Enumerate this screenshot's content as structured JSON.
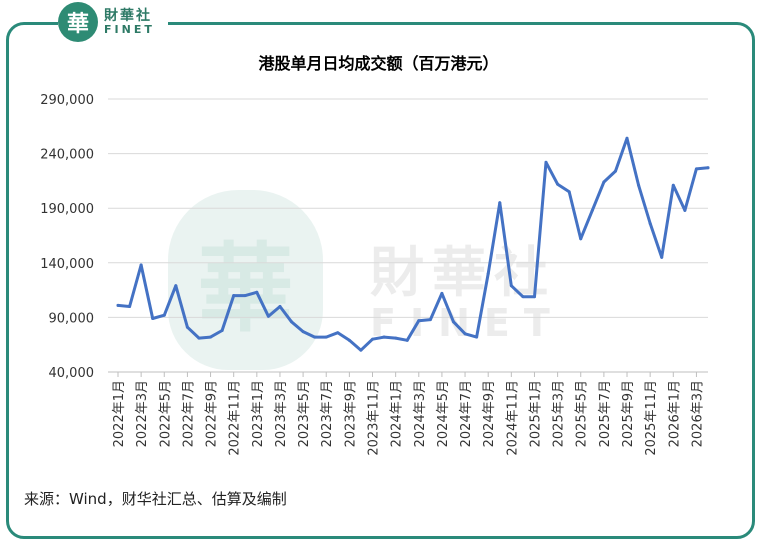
{
  "logo": {
    "seal_char": "華",
    "name_cn": "財華社",
    "name_en": "FINET"
  },
  "watermark": {
    "seal_char": "華",
    "name_cn": "財華社",
    "name_en": "FINET"
  },
  "source": "来源：Wind，财华社汇总、估算及编制",
  "colors": {
    "line": "#4472c4",
    "frame": "#2a8a7a",
    "grid": "#d9d9d9"
  },
  "chart_data": {
    "type": "line",
    "title": "港股单月日均成交额（百万港元）",
    "xlabel": "",
    "ylabel": "",
    "ylim": [
      40000,
      290000
    ],
    "yticks": [
      "290,000",
      "240,000",
      "190,000",
      "140,000",
      "90,000",
      "40,000"
    ],
    "ytick_values": [
      290000,
      240000,
      190000,
      140000,
      90000,
      40000
    ],
    "grid": true,
    "categories": [
      "2022年1月",
      "2022年2月",
      "2022年3月",
      "2022年4月",
      "2022年5月",
      "2022年6月",
      "2022年7月",
      "2022年8月",
      "2022年9月",
      "2022年10月",
      "2022年11月",
      "2022年12月",
      "2023年1月",
      "2023年2月",
      "2023年3月",
      "2023年4月",
      "2023年5月",
      "2023年6月",
      "2023年7月",
      "2023年8月",
      "2023年9月",
      "2023年10月",
      "2023年11月",
      "2023年12月",
      "2024年1月",
      "2024年2月",
      "2024年3月",
      "2024年4月",
      "2024年5月",
      "2024年6月",
      "2024年7月",
      "2024年8月",
      "2024年9月",
      "2024年10月",
      "2024年11月",
      "2024年12月",
      "2025年1月",
      "2025年2月",
      "2025年3月",
      "2025年4月",
      "2025年5月",
      "2025年6月",
      "2025年7月",
      "2025年8月",
      "2025年9月",
      "2025年10月",
      "2025年11月",
      "2025年12月",
      "2026年1月",
      "2026年2月",
      "2026年3月",
      "2026年4月"
    ],
    "tick_labels": [
      "2022年1月",
      "2022年3月",
      "2022年5月",
      "2022年7月",
      "2022年9月",
      "2022年11月",
      "2023年1月",
      "2023年3月",
      "2023年5月",
      "2023年7月",
      "2023年9月",
      "2023年11月",
      "2024年1月",
      "2024年3月",
      "2024年5月",
      "2024年7月",
      "2024年9月",
      "2024年11月",
      "2025年1月",
      "2025年3月",
      "2025年5月",
      "2025年7月",
      "2025年9月",
      "2025年11月",
      "2026年1月",
      "2026年3月"
    ],
    "series": [
      {
        "values": [
          101000,
          100000,
          138000,
          89000,
          92000,
          119000,
          81000,
          71000,
          72000,
          78000,
          110000,
          110000,
          113000,
          91000,
          100000,
          86000,
          77000,
          72000,
          72000,
          76000,
          69000,
          60000,
          70000,
          72000,
          71000,
          69000,
          87000,
          88000,
          112000,
          86000,
          75000,
          72000,
          130000,
          195000,
          119000,
          109000,
          109000,
          232000,
          212000,
          205000,
          162000,
          188000,
          214000,
          224000,
          254000,
          211000,
          176000,
          145000,
          211000,
          188000,
          226000,
          227000
        ]
      }
    ]
  }
}
